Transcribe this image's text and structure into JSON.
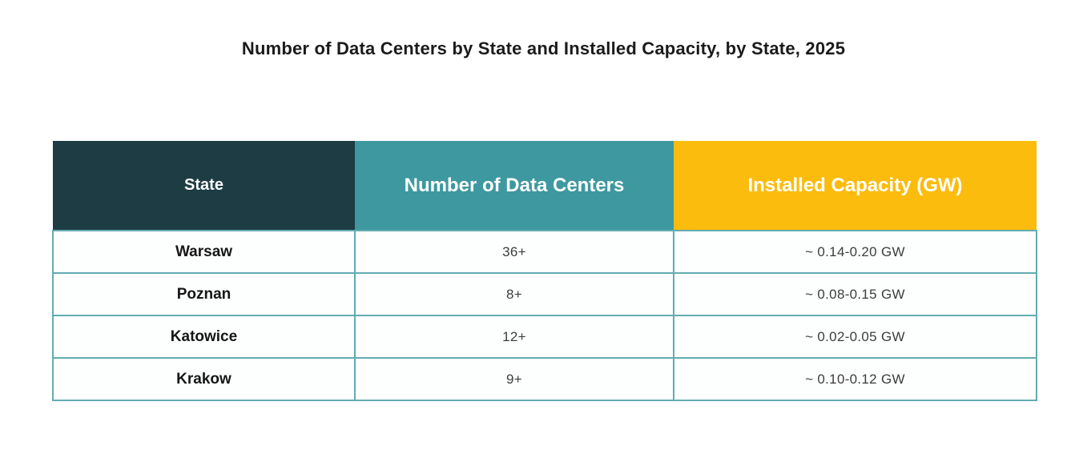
{
  "title": "Number of Data Centers by State and Installed Capacity, by State, 2025",
  "colors": {
    "header_state_bg": "#1d3c44",
    "header_count_bg": "#3e98a0",
    "header_capacity_bg": "#fbbc0d",
    "header_text": "#ffffff",
    "cell_border": "#63acb1",
    "title_text": "#1b1b1b"
  },
  "table": {
    "columns": [
      {
        "label": "State"
      },
      {
        "label": "Number of Data Centers"
      },
      {
        "label": "Installed Capacity (GW)"
      }
    ],
    "rows": [
      {
        "state": "Warsaw",
        "count": "36+",
        "capacity": "~ 0.14-0.20 GW"
      },
      {
        "state": "Poznan",
        "count": "8+",
        "capacity": "~ 0.08-0.15 GW"
      },
      {
        "state": "Katowice",
        "count": "12+",
        "capacity": "~ 0.02-0.05 GW"
      },
      {
        "state": "Krakow",
        "count": "9+",
        "capacity": "~ 0.10-0.12 GW"
      }
    ]
  },
  "chart_data": {
    "type": "table",
    "title": "Number of Data Centers by State and Installed Capacity, by State, 2025",
    "columns": [
      "State",
      "Number of Data Centers",
      "Installed Capacity (GW)"
    ],
    "rows": [
      [
        "Warsaw",
        "36+",
        "~ 0.14-0.20 GW"
      ],
      [
        "Poznan",
        "8+",
        "~ 0.08-0.15 GW"
      ],
      [
        "Katowice",
        "12+",
        "~ 0.02-0.05 GW"
      ],
      [
        "Krakow",
        "9+",
        "~ 0.10-0.12 GW"
      ]
    ],
    "notes": {
      "data_centers_numeric": [
        36,
        8,
        12,
        9
      ],
      "installed_capacity_gw_range": [
        [
          0.14,
          0.2
        ],
        [
          0.08,
          0.15
        ],
        [
          0.02,
          0.05
        ],
        [
          0.1,
          0.12
        ]
      ]
    }
  }
}
